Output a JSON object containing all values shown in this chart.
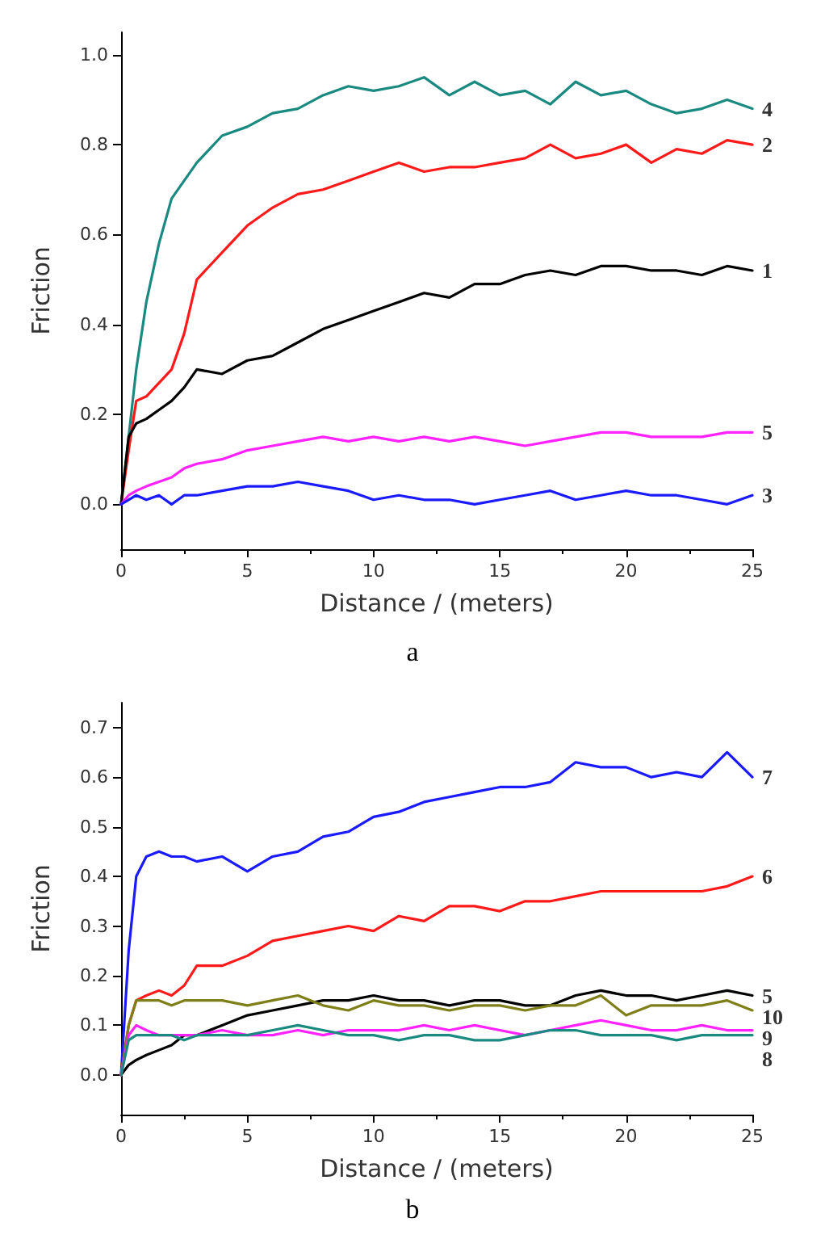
{
  "chart_data": [
    {
      "type": "line",
      "xlabel": "Distance / (meters)",
      "ylabel": "Friction",
      "annotations": [
        "a"
      ],
      "xlim": [
        0,
        25
      ],
      "xticks": [
        0,
        5,
        10,
        15,
        20,
        25
      ],
      "ylim": [
        -0.1,
        1.05
      ],
      "yticks": [
        {
          "value": 0,
          "label": "0.0"
        },
        {
          "value": 0.2,
          "label": "0.2"
        },
        {
          "value": 0.4,
          "label": "0.4"
        },
        {
          "value": 0.6,
          "label": "0.6"
        },
        {
          "value": 0.8,
          "label": "0.8"
        },
        {
          "value": 1,
          "label": "1.0"
        }
      ],
      "grid": false,
      "legend": false,
      "marker": "none",
      "line_style": "solid",
      "x": [
        0,
        0.3,
        0.6,
        1,
        1.5,
        2,
        2.5,
        3,
        4,
        5,
        6,
        7,
        8,
        9,
        10,
        11,
        12,
        13,
        14,
        15,
        16,
        17,
        18,
        19,
        20,
        21,
        22,
        23,
        24,
        25
      ],
      "series": [
        {
          "name": "4",
          "color": "#1a8a80",
          "values": [
            0,
            0.15,
            0.3,
            0.45,
            0.58,
            0.68,
            0.72,
            0.76,
            0.82,
            0.84,
            0.87,
            0.88,
            0.91,
            0.93,
            0.92,
            0.93,
            0.95,
            0.91,
            0.94,
            0.91,
            0.92,
            0.89,
            0.94,
            0.91,
            0.92,
            0.89,
            0.87,
            0.88,
            0.9,
            0.88
          ]
        },
        {
          "name": "2",
          "color": "#ff1a1a",
          "values": [
            0,
            0.12,
            0.23,
            0.24,
            0.27,
            0.3,
            0.38,
            0.5,
            0.56,
            0.62,
            0.66,
            0.69,
            0.7,
            0.72,
            0.74,
            0.76,
            0.74,
            0.75,
            0.75,
            0.76,
            0.77,
            0.8,
            0.77,
            0.78,
            0.8,
            0.76,
            0.79,
            0.78,
            0.81,
            0.8
          ]
        },
        {
          "name": "1",
          "color": "#000000",
          "values": [
            0,
            0.15,
            0.18,
            0.19,
            0.21,
            0.23,
            0.26,
            0.3,
            0.29,
            0.32,
            0.33,
            0.36,
            0.39,
            0.41,
            0.43,
            0.45,
            0.47,
            0.46,
            0.49,
            0.49,
            0.51,
            0.52,
            0.51,
            0.53,
            0.53,
            0.52,
            0.52,
            0.51,
            0.53,
            0.52
          ]
        },
        {
          "name": "5",
          "color": "#ff22ff",
          "values": [
            0,
            0.02,
            0.03,
            0.04,
            0.05,
            0.06,
            0.08,
            0.09,
            0.1,
            0.12,
            0.13,
            0.14,
            0.15,
            0.14,
            0.15,
            0.14,
            0.15,
            0.14,
            0.15,
            0.14,
            0.13,
            0.14,
            0.15,
            0.16,
            0.16,
            0.15,
            0.15,
            0.15,
            0.16,
            0.16
          ]
        },
        {
          "name": "3",
          "color": "#1a1aff",
          "values": [
            0,
            0.01,
            0.02,
            0.01,
            0.02,
            0,
            0.02,
            0.02,
            0.03,
            0.04,
            0.04,
            0.05,
            0.04,
            0.03,
            0.01,
            0.02,
            0.01,
            0.01,
            0,
            0.01,
            0.02,
            0.03,
            0.01,
            0.02,
            0.03,
            0.02,
            0.02,
            0.01,
            0,
            0.02
          ]
        }
      ]
    },
    {
      "type": "line",
      "xlabel": "Distance / (meters)",
      "ylabel": "Friction",
      "annotations": [
        "b"
      ],
      "xlim": [
        0,
        25
      ],
      "xticks": [
        0,
        5,
        10,
        15,
        20,
        25
      ],
      "ylim": [
        -0.08,
        0.75
      ],
      "yticks": [
        {
          "value": 0,
          "label": "0.0"
        },
        {
          "value": 0.1,
          "label": "0.1"
        },
        {
          "value": 0.2,
          "label": "0.2"
        },
        {
          "value": 0.3,
          "label": "0.3"
        },
        {
          "value": 0.4,
          "label": "0.4"
        },
        {
          "value": 0.5,
          "label": "0.5"
        },
        {
          "value": 0.6,
          "label": "0.6"
        },
        {
          "value": 0.7,
          "label": "0.7"
        }
      ],
      "grid": false,
      "legend": false,
      "marker": "none",
      "line_style": "solid",
      "x": [
        0,
        0.3,
        0.6,
        1,
        1.5,
        2,
        2.5,
        3,
        4,
        5,
        6,
        7,
        8,
        9,
        10,
        11,
        12,
        13,
        14,
        15,
        16,
        17,
        18,
        19,
        20,
        21,
        22,
        23,
        24,
        25
      ],
      "series": [
        {
          "name": "7",
          "color": "#1a1aff",
          "values": [
            0,
            0.25,
            0.4,
            0.44,
            0.45,
            0.44,
            0.44,
            0.43,
            0.44,
            0.41,
            0.44,
            0.45,
            0.48,
            0.49,
            0.52,
            0.53,
            0.55,
            0.56,
            0.57,
            0.58,
            0.58,
            0.59,
            0.63,
            0.62,
            0.62,
            0.6,
            0.61,
            0.6,
            0.65,
            0.6
          ]
        },
        {
          "name": "6",
          "color": "#ff1a1a",
          "values": [
            0,
            0.1,
            0.15,
            0.16,
            0.17,
            0.16,
            0.18,
            0.22,
            0.22,
            0.24,
            0.27,
            0.28,
            0.29,
            0.3,
            0.29,
            0.32,
            0.31,
            0.34,
            0.34,
            0.33,
            0.35,
            0.35,
            0.36,
            0.37,
            0.37,
            0.37,
            0.37,
            0.37,
            0.38,
            0.4
          ]
        },
        {
          "name": "5",
          "color": "#000000",
          "values": [
            0,
            0.02,
            0.03,
            0.04,
            0.05,
            0.06,
            0.08,
            0.08,
            0.1,
            0.12,
            0.13,
            0.14,
            0.15,
            0.15,
            0.16,
            0.15,
            0.15,
            0.14,
            0.15,
            0.15,
            0.14,
            0.14,
            0.16,
            0.17,
            0.16,
            0.16,
            0.15,
            0.16,
            0.17,
            0.16
          ]
        },
        {
          "name": "10",
          "color": "#7f7f1a",
          "values": [
            0,
            0.1,
            0.15,
            0.15,
            0.15,
            0.14,
            0.15,
            0.15,
            0.15,
            0.14,
            0.15,
            0.16,
            0.14,
            0.13,
            0.15,
            0.14,
            0.14,
            0.13,
            0.14,
            0.14,
            0.13,
            0.14,
            0.14,
            0.16,
            0.12,
            0.14,
            0.14,
            0.14,
            0.15,
            0.13
          ]
        },
        {
          "name": "9",
          "color": "#ff22ff",
          "values": [
            0,
            0.08,
            0.1,
            0.09,
            0.08,
            0.08,
            0.08,
            0.08,
            0.09,
            0.08,
            0.08,
            0.09,
            0.08,
            0.09,
            0.09,
            0.09,
            0.1,
            0.09,
            0.1,
            0.09,
            0.08,
            0.09,
            0.1,
            0.11,
            0.1,
            0.09,
            0.09,
            0.1,
            0.09,
            0.09
          ]
        },
        {
          "name": "8",
          "color": "#1a8a80",
          "values": [
            0,
            0.07,
            0.08,
            0.08,
            0.08,
            0.08,
            0.07,
            0.08,
            0.08,
            0.08,
            0.09,
            0.1,
            0.09,
            0.08,
            0.08,
            0.07,
            0.08,
            0.08,
            0.07,
            0.07,
            0.08,
            0.09,
            0.09,
            0.08,
            0.08,
            0.08,
            0.07,
            0.08,
            0.08,
            0.08
          ]
        }
      ]
    }
  ]
}
